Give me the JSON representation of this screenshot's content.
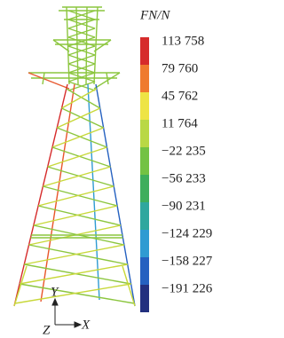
{
  "legend": {
    "title": "FN/N",
    "labels": [
      "113 758",
      "79 760",
      "45 762",
      "11 764",
      "−22 235",
      "−56 233",
      "−90 231",
      "−124 229",
      "−158 227",
      "−191 226"
    ]
  },
  "axes": {
    "y": "Y",
    "x": "X",
    "z": "Z"
  }
}
